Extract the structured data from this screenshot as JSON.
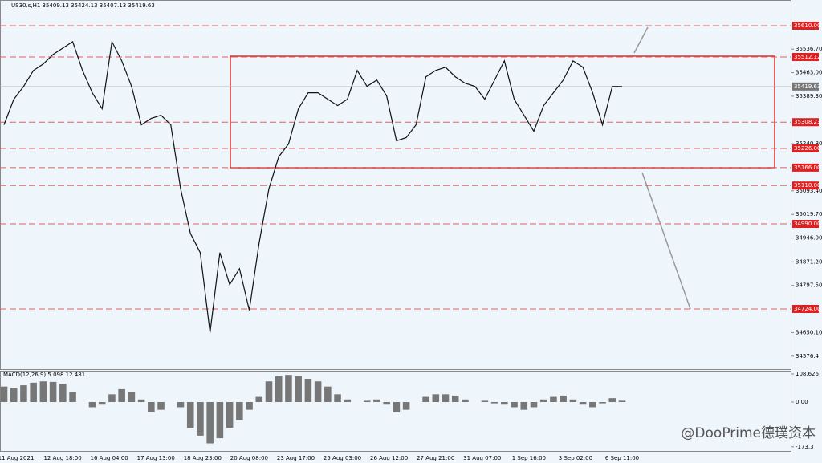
{
  "header": "US30.s,H1  35409.13 35424.13 35407.13 35419.63",
  "watermark": "@DooPrime德璞资本",
  "chart_data": [
    {
      "type": "line",
      "color": "#111111",
      "x_labels": [
        "11 Aug 2021",
        "12 Aug 18:00",
        "16 Aug 04:00",
        "17 Aug 13:00",
        "18 Aug 23:00",
        "20 Aug 08:00",
        "23 Aug 17:00",
        "25 Aug 03:00",
        "26 Aug 12:00",
        "27 Aug 21:00",
        "31 Aug 07:00",
        "1 Sep 16:00",
        "3 Sep 02:00",
        "6 Sep 11:00"
      ],
      "values": [
        35300,
        35380,
        35420,
        35470,
        35490,
        35520,
        35540,
        35560,
        35470,
        35400,
        35350,
        35560,
        35500,
        35420,
        35300,
        35320,
        35330,
        35300,
        35100,
        34960,
        34900,
        34650,
        34900,
        34800,
        34850,
        34720,
        34930,
        35100,
        35200,
        35240,
        35350,
        35400,
        35400,
        35380,
        35360,
        35380,
        35470,
        35420,
        35440,
        35390,
        35250,
        35260,
        35300,
        35450,
        35470,
        35480,
        35450,
        35430,
        35420,
        35380,
        35440,
        35500,
        35380,
        35330,
        35280,
        35360,
        35400,
        35440,
        35500,
        35480,
        35400,
        35300,
        35420,
        35419.63
      ],
      "ylim": [
        34535.7,
        35690.3
      ],
      "yticks": [
        {
          "value": 35536.7,
          "label": "35536.70"
        },
        {
          "value": 35463,
          "label": "35463.00"
        },
        {
          "value": 35389.3,
          "label": "35389.30"
        },
        {
          "value": 35240.8,
          "label": "35240.80"
        },
        {
          "value": 35093.4,
          "label": "35093.40"
        },
        {
          "value": 35019.7,
          "label": "35019.70"
        },
        {
          "value": 34946,
          "label": "34946.00"
        },
        {
          "value": 34871.2,
          "label": "34871.20"
        },
        {
          "value": 34797.5,
          "label": "34797.50"
        },
        {
          "value": 34650.1,
          "label": "34650.10"
        },
        34576.4
      ],
      "levels": [
        {
          "value": 35610,
          "label": "35610.00"
        },
        35512.12,
        35308.23,
        {
          "value": 35226,
          "label": "35226.00"
        },
        {
          "value": 35166,
          "label": "35166.00"
        },
        {
          "value": 35110,
          "label": "35110.00"
        },
        {
          "value": 34990,
          "label": "34990.00"
        },
        {
          "value": 34724,
          "label": "34724.00"
        }
      ],
      "current": 35419.63
    },
    {
      "type": "bar",
      "title": "MACD(12,26,9) 5.098 12.481",
      "color": "#777777",
      "values": [
        60,
        55,
        65,
        75,
        80,
        78,
        70,
        40,
        0,
        -20,
        -10,
        30,
        50,
        40,
        10,
        -40,
        -30,
        0,
        -20,
        -100,
        -130,
        -160,
        -140,
        -100,
        -70,
        -30,
        20,
        80,
        100,
        105,
        100,
        90,
        80,
        60,
        30,
        10,
        0,
        5,
        10,
        -10,
        -40,
        -30,
        0,
        20,
        30,
        30,
        25,
        10,
        0,
        5,
        -5,
        -10,
        -20,
        -30,
        -20,
        10,
        20,
        25,
        10,
        -10,
        -20,
        -5,
        15,
        5.098
      ],
      "ylim": [
        -183.2,
        118
      ],
      "yticks": [
        108.626,
        {
          "value": 0,
          "label": "0.00"
        },
        -173.3
      ]
    }
  ]
}
